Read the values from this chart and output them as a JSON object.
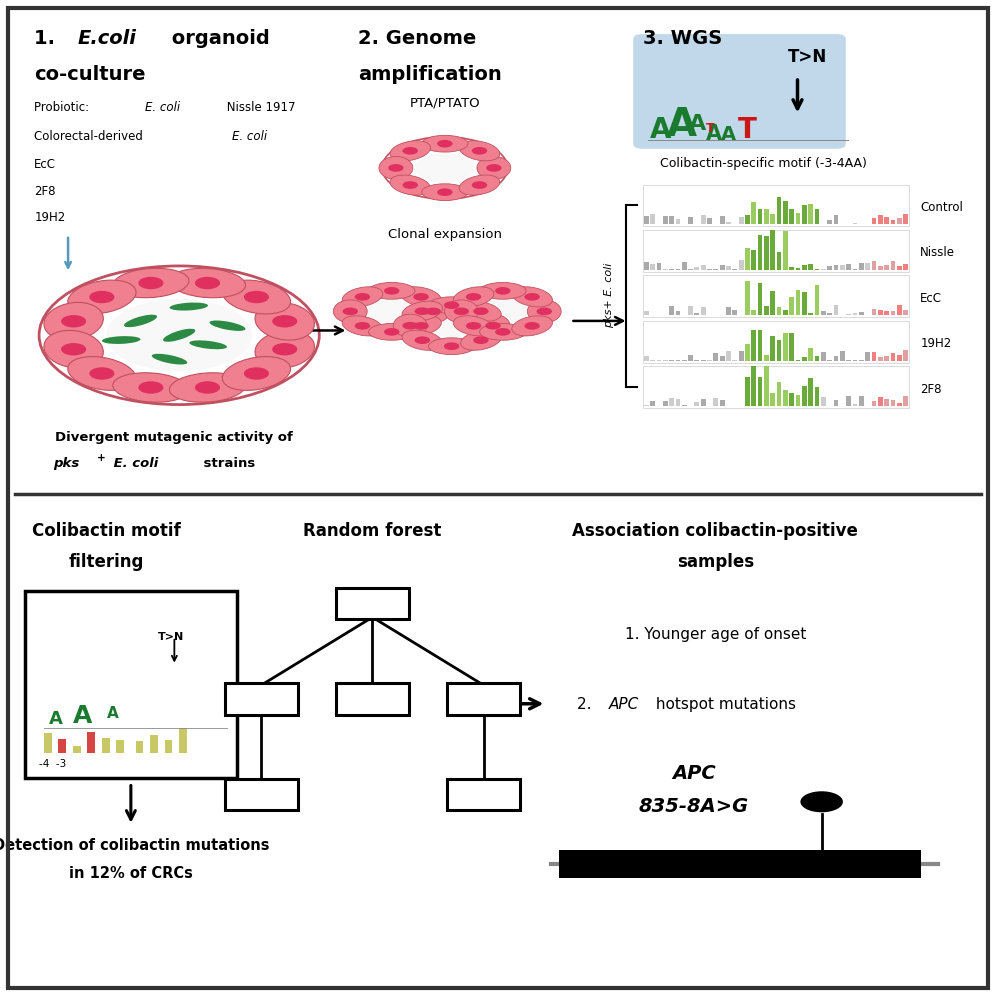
{
  "bg_top": "#dde8f0",
  "bg_bottom": "#cfd9e6",
  "organoid_fill": "#f08090",
  "organoid_edge": "#c05060",
  "bacteria_color": "#2d8a45",
  "needle_color": "#5599bb",
  "green_bar_color": "#6aaa3a",
  "green_bar_light": "#9acc60",
  "gray_bar_color": "#aaaaaa",
  "pink_bar_color": "#f08080",
  "logo_green": "#1a7a2e",
  "logo_red": "#cc1515",
  "logo_bg": "#c0d8ea",
  "wgs_labels": [
    "Control",
    "Nissle",
    "EcC",
    "19H2",
    "2F8"
  ]
}
